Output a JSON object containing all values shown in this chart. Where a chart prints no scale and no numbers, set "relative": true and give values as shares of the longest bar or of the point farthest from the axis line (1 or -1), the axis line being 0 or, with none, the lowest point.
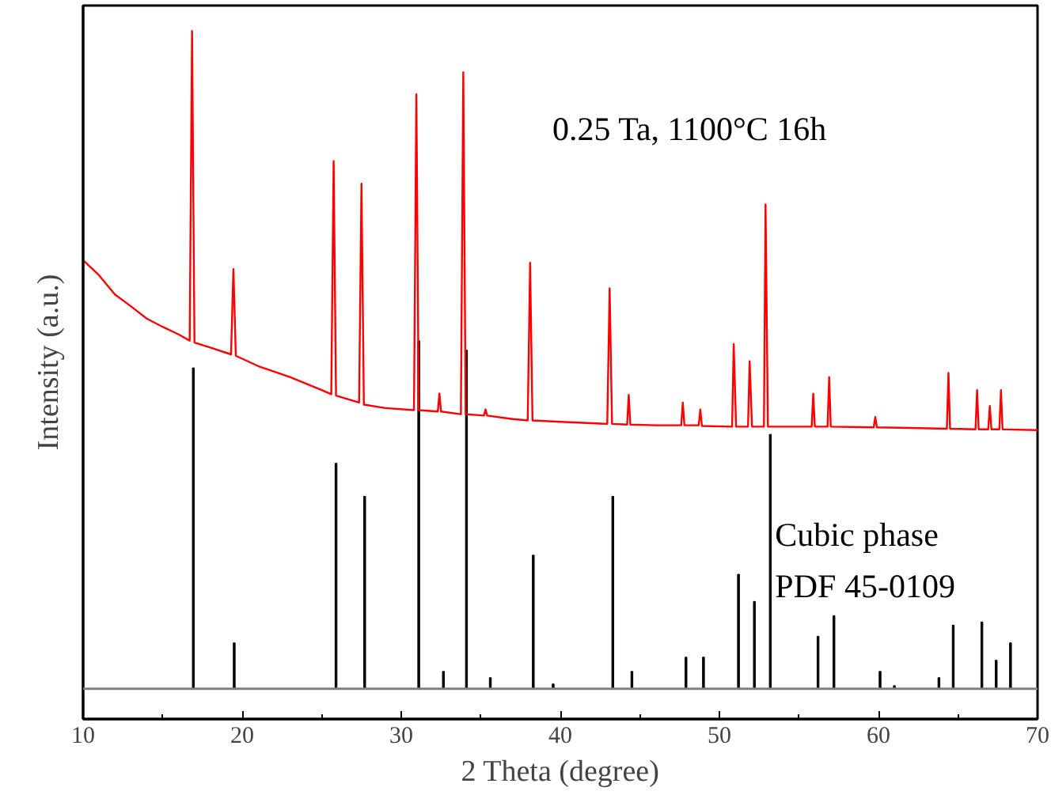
{
  "chart_data": {
    "type": "line",
    "relative": true,
    "xlabel": "2 Theta (degree)",
    "ylabel": "Intensity (a.u.)",
    "xlim": [
      10,
      70
    ],
    "xticks": [
      10,
      20,
      30,
      40,
      50,
      60,
      70
    ],
    "grid": false,
    "line_style": "solid",
    "annotations": [
      "0.25 Ta,  1100°C 16h",
      "Cubic phase",
      "PDF 45-0109"
    ],
    "ref_lines": [
      {
        "axis": "y2",
        "value": 0,
        "color": "#808080"
      }
    ],
    "series": [
      {
        "color": "#ff0000",
        "x": [
          10,
          11,
          12,
          13,
          14,
          15,
          16,
          16.7,
          16.85,
          17.0,
          18,
          19.3,
          19.45,
          19.6,
          21,
          23,
          25,
          25.6,
          25.75,
          25.9,
          27.35,
          27.5,
          27.65,
          29,
          30.8,
          30.95,
          31.1,
          32.3,
          32.4,
          32.5,
          33.75,
          33.9,
          34.05,
          35.2,
          35.3,
          35.4,
          37,
          37.95,
          38.1,
          38.25,
          40,
          42.95,
          43.1,
          43.25,
          44.2,
          44.3,
          44.4,
          46,
          47.6,
          47.7,
          47.8,
          48.7,
          48.8,
          48.9,
          50.8,
          50.9,
          51.05,
          51.8,
          51.9,
          52.05,
          52.8,
          52.9,
          53.05,
          55,
          55.8,
          55.9,
          56.0,
          56.8,
          56.9,
          57.0,
          59.7,
          59.8,
          59.9,
          62,
          64.3,
          64.4,
          64.5,
          66.1,
          66.2,
          66.3,
          66.9,
          67.0,
          67.1,
          67.6,
          67.7,
          67.8,
          70
        ],
        "values": [
          0.667,
          0.645,
          0.617,
          0.6,
          0.582,
          0.57,
          0.559,
          0.55,
          1.0,
          0.547,
          0.54,
          0.53,
          0.654,
          0.528,
          0.513,
          0.497,
          0.478,
          0.472,
          0.811,
          0.47,
          0.46,
          0.778,
          0.457,
          0.452,
          0.449,
          0.908,
          0.449,
          0.447,
          0.473,
          0.447,
          0.443,
          0.94,
          0.443,
          0.441,
          0.45,
          0.441,
          0.436,
          0.434,
          0.663,
          0.434,
          0.432,
          0.429,
          0.626,
          0.429,
          0.428,
          0.471,
          0.428,
          0.427,
          0.427,
          0.46,
          0.427,
          0.427,
          0.45,
          0.426,
          0.425,
          0.545,
          0.425,
          0.425,
          0.52,
          0.425,
          0.425,
          0.748,
          0.425,
          0.425,
          0.425,
          0.473,
          0.425,
          0.425,
          0.497,
          0.425,
          0.424,
          0.439,
          0.424,
          0.423,
          0.422,
          0.503,
          0.422,
          0.421,
          0.478,
          0.421,
          0.421,
          0.455,
          0.421,
          0.421,
          0.478,
          0.421,
          0.42
        ]
      },
      {
        "type": "bar",
        "axis": "y2",
        "color": "#000000",
        "x": [
          16.93,
          19.5,
          25.9,
          27.7,
          31.1,
          32.65,
          34.1,
          35.6,
          38.3,
          39.55,
          43.3,
          44.5,
          47.9,
          49.0,
          51.2,
          52.2,
          53.2,
          56.2,
          57.2,
          60.1,
          61.0,
          63.8,
          64.7,
          66.5,
          67.4,
          68.3
        ],
        "values": [
          0.922,
          0.132,
          0.648,
          0.553,
          1.0,
          0.05,
          0.973,
          0.032,
          0.384,
          0.014,
          0.553,
          0.05,
          0.091,
          0.091,
          0.329,
          0.251,
          0.731,
          0.151,
          0.21,
          0.05,
          0.009,
          0.032,
          0.183,
          0.192,
          0.082,
          0.132
        ]
      }
    ]
  }
}
